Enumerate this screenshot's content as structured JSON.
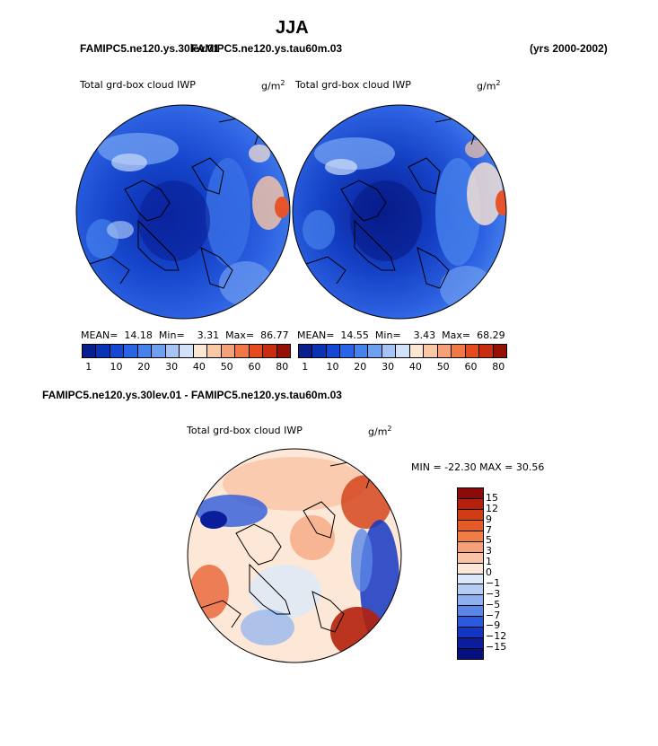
{
  "page": {
    "title": "JJA",
    "left_case": "FAMIPC5.ne120.ys.30lev.01",
    "right_case": "FAMIPC5.ne120.ys.tau60m.03",
    "years": "(yrs 2000-2002)",
    "diff_title": "FAMIPC5.ne120.ys.30lev.01 - FAMIPC5.ne120.ys.tau60m.03"
  },
  "panels": [
    {
      "variable": "Total grd-box cloud IWP",
      "units": "g/m",
      "units_exp": "2",
      "mean_label": "MEAN=",
      "mean": "14.18",
      "min_label": "Min=",
      "min": "3.31",
      "max_label": "Max=",
      "max": "86.77"
    },
    {
      "variable": "Total grd-box cloud IWP",
      "units": "g/m",
      "units_exp": "2",
      "mean_label": "MEAN=",
      "mean": "14.55",
      "min_label": "Min=",
      "min": "3.43",
      "max_label": "Max=",
      "max": "68.29"
    }
  ],
  "colorbar": {
    "labels": [
      "1",
      "10",
      "20",
      "30",
      "40",
      "50",
      "60",
      "80"
    ],
    "colors": [
      "#081e8c",
      "#0a32b4",
      "#1448d2",
      "#2864e6",
      "#4682ec",
      "#6ea0f0",
      "#a5c3f5",
      "#d2e1fa",
      "#fde6d2",
      "#fac8a5",
      "#f5a078",
      "#f07846",
      "#e64b1e",
      "#c82d0f",
      "#960f05"
    ]
  },
  "diff_panel": {
    "variable": "Total grd-box cloud IWP",
    "units": "g/m",
    "units_exp": "2",
    "minmax": "MIN = -22.30 MAX =  30.56",
    "colorbar_labels": [
      "15",
      "12",
      "9",
      "7",
      "5",
      "3",
      "1",
      "0",
      "−1",
      "−3",
      "−5",
      "−7",
      "−9",
      "−12",
      "−15"
    ],
    "colorbar_colors": [
      "#8c0a0a",
      "#b4200c",
      "#d23c14",
      "#e65a28",
      "#f07c46",
      "#f5a078",
      "#fac3a5",
      "#fde8d7",
      "#dce8fa",
      "#b4cdf5",
      "#8cb0f0",
      "#5a87e6",
      "#2d5adc",
      "#1437c3",
      "#0a1e9b",
      "#050f7d"
    ]
  }
}
